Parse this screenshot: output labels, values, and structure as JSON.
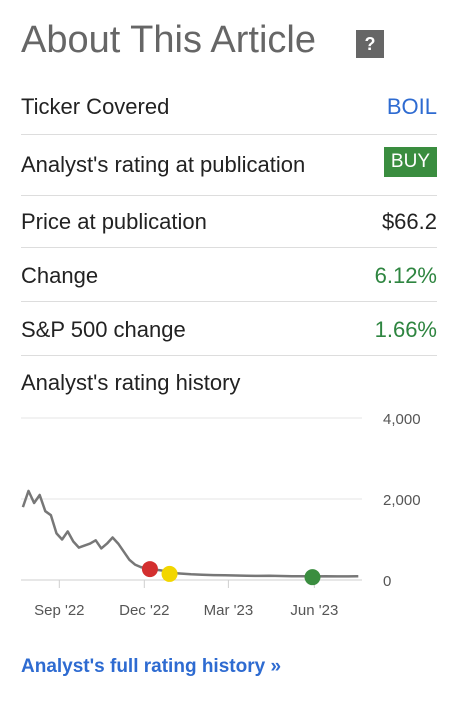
{
  "header": {
    "title": "About This Article",
    "help_glyph": "?"
  },
  "rows": {
    "ticker": {
      "label": "Ticker Covered",
      "value": "BOIL"
    },
    "rating": {
      "label": "Analyst's rating at publication",
      "value": "BUY"
    },
    "price": {
      "label": "Price at publication",
      "value": "$66.2"
    },
    "change": {
      "label": "Change",
      "value": "6.12%"
    },
    "sp500": {
      "label": "S&P 500 change",
      "value": "1.66%"
    }
  },
  "history": {
    "title": "Analyst's rating history",
    "full_link": "Analyst's full rating history »"
  },
  "colors": {
    "link": "#2e6bd1",
    "positive": "#2e8540",
    "buy_badge": "#3a8d3f",
    "marker_sell": "#d32f2f",
    "marker_hold": "#f2d600",
    "marker_buy": "#3a8d3f",
    "line": "#777777"
  },
  "chart_data": {
    "type": "line",
    "title": "",
    "xlabel": "",
    "ylabel": "",
    "ylim": [
      0,
      4000
    ],
    "yticks": [
      "4,000",
      "2,000",
      "0"
    ],
    "ytick_values": [
      4000,
      2000,
      0
    ],
    "xticks": [
      "Sep '22",
      "Dec '22",
      "Mar '23",
      "Jun '23"
    ],
    "xtick_dates": [
      "2022-09-01",
      "2022-12-01",
      "2023-03-01",
      "2023-06-01"
    ],
    "grid": "horizontal",
    "series": [
      {
        "x": [
          "2022-07-24",
          "2022-07-30",
          "2022-08-05",
          "2022-08-11",
          "2022-08-17",
          "2022-08-23",
          "2022-08-29",
          "2022-09-04",
          "2022-09-10",
          "2022-09-16",
          "2022-09-22",
          "2022-09-28",
          "2022-10-04",
          "2022-10-10",
          "2022-10-16",
          "2022-10-22",
          "2022-10-28",
          "2022-11-03",
          "2022-11-09",
          "2022-11-15",
          "2022-11-21",
          "2022-11-27",
          "2022-12-03",
          "2022-12-09",
          "2022-12-15",
          "2022-12-21",
          "2022-12-27",
          "2023-01-02",
          "2023-01-08",
          "2023-01-20",
          "2023-02-01",
          "2023-02-13",
          "2023-02-25",
          "2023-03-09",
          "2023-03-21",
          "2023-04-02",
          "2023-04-14",
          "2023-04-26",
          "2023-05-08",
          "2023-05-20",
          "2023-06-01",
          "2023-06-13",
          "2023-06-25",
          "2023-07-07",
          "2023-07-18"
        ],
        "values": [
          1800,
          2200,
          1900,
          2100,
          1700,
          1600,
          1150,
          1000,
          1200,
          950,
          800,
          850,
          900,
          980,
          780,
          900,
          1050,
          900,
          700,
          500,
          380,
          320,
          280,
          260,
          250,
          230,
          210,
          170,
          160,
          140,
          130,
          120,
          115,
          110,
          105,
          100,
          105,
          98,
          95,
          92,
          90,
          95,
          90,
          88,
          92
        ]
      }
    ],
    "markers": [
      {
        "date": "2022-12-07",
        "value": 270,
        "rating": "Sell"
      },
      {
        "date": "2022-12-28",
        "value": 150,
        "rating": "Hold"
      },
      {
        "date": "2023-05-30",
        "value": 70,
        "rating": "Buy"
      }
    ]
  }
}
